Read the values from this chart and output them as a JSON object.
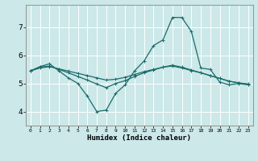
{
  "xlabel": "Humidex (Indice chaleur)",
  "background_color": "#cce8e8",
  "grid_color": "#ffffff",
  "line_color": "#1a6b6b",
  "xlim": [
    -0.5,
    23.5
  ],
  "ylim": [
    3.5,
    7.8
  ],
  "yticks": [
    4,
    5,
    6,
    7
  ],
  "xtick_labels": [
    "0",
    "1",
    "2",
    "3",
    "4",
    "5",
    "6",
    "7",
    "8",
    "9",
    "10",
    "11",
    "12",
    "13",
    "14",
    "15",
    "16",
    "17",
    "18",
    "19",
    "20",
    "21",
    "22",
    "23"
  ],
  "series": [
    {
      "x": [
        0,
        1,
        2,
        3,
        4,
        5,
        6,
        7,
        8,
        9,
        10,
        11,
        12,
        13,
        14,
        15,
        16,
        17,
        18,
        19,
        20,
        21,
        22,
        23
      ],
      "y": [
        5.45,
        5.6,
        5.7,
        5.45,
        5.2,
        5.0,
        4.55,
        4.0,
        4.05,
        4.65,
        4.95,
        5.45,
        5.8,
        6.35,
        6.55,
        7.35,
        7.35,
        6.85,
        5.55,
        5.5,
        5.05,
        4.95,
        5.0,
        4.95
      ]
    },
    {
      "x": [
        0,
        1,
        2,
        3,
        4,
        5,
        6,
        7,
        8,
        9,
        10,
        11,
        12,
        13,
        14,
        15,
        16,
        17,
        18,
        19,
        20,
        21,
        22,
        23
      ],
      "y": [
        5.45,
        5.58,
        5.62,
        5.5,
        5.38,
        5.25,
        5.12,
        4.98,
        4.85,
        5.0,
        5.1,
        5.25,
        5.38,
        5.48,
        5.58,
        5.65,
        5.58,
        5.48,
        5.38,
        5.28,
        5.18,
        5.08,
        5.02,
        4.98
      ]
    },
    {
      "x": [
        0,
        1,
        2,
        3,
        4,
        5,
        6,
        7,
        8,
        9,
        10,
        11,
        12,
        13,
        14,
        15,
        16,
        17,
        18,
        19,
        20,
        21,
        22,
        23
      ],
      "y": [
        5.45,
        5.55,
        5.6,
        5.52,
        5.44,
        5.36,
        5.28,
        5.2,
        5.12,
        5.15,
        5.22,
        5.32,
        5.42,
        5.5,
        5.58,
        5.62,
        5.55,
        5.46,
        5.38,
        5.28,
        5.18,
        5.08,
        5.02,
        4.97
      ]
    }
  ]
}
